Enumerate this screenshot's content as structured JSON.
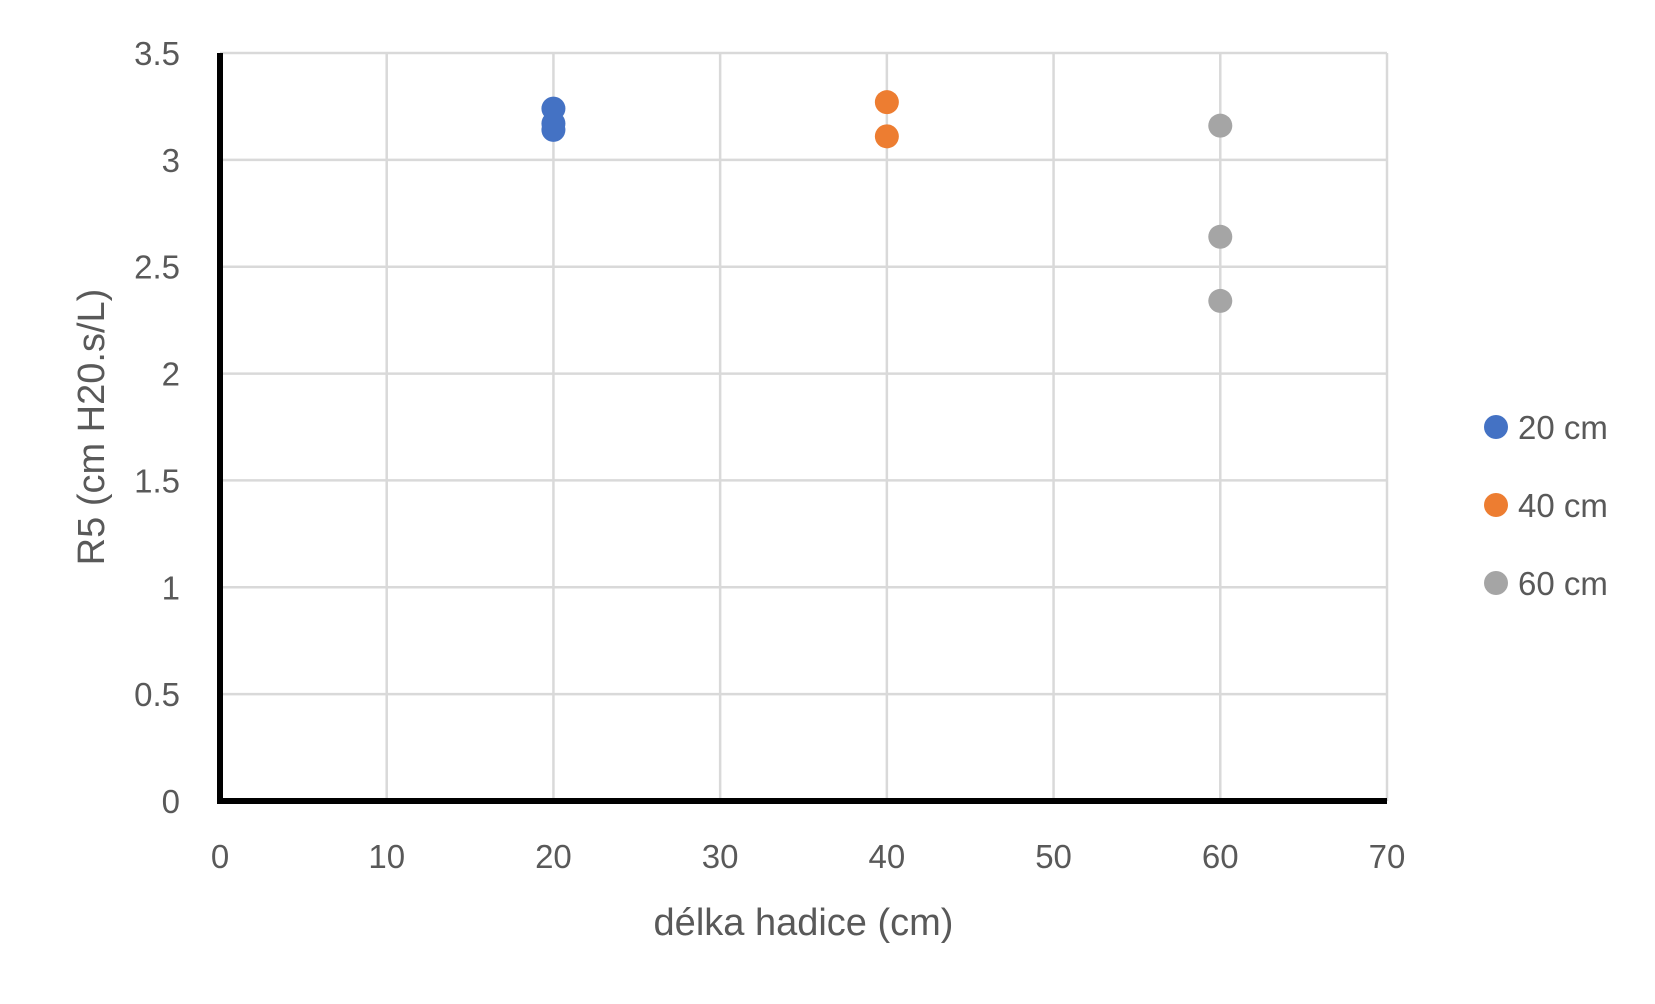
{
  "chart_data": {
    "type": "scatter",
    "title": "",
    "xlabel": "délka hadice (cm)",
    "ylabel": "R5 (cm H20.s/L)",
    "xlim": [
      0,
      70
    ],
    "ylim": [
      0,
      3.5
    ],
    "x_ticks": [
      "0",
      "10",
      "20",
      "30",
      "40",
      "50",
      "60",
      "70"
    ],
    "y_ticks": [
      "0",
      "0.5",
      "1",
      "1.5",
      "2",
      "2.5",
      "3",
      "3.5"
    ],
    "grid": true,
    "legend_position": "right",
    "series": [
      {
        "name": "20 cm",
        "color": "#4472C4",
        "points": [
          {
            "x": 20,
            "y": 3.24
          },
          {
            "x": 20,
            "y": 3.17
          },
          {
            "x": 20,
            "y": 3.14
          }
        ]
      },
      {
        "name": "40 cm",
        "color": "#ED7D31",
        "points": [
          {
            "x": 40,
            "y": 3.27
          },
          {
            "x": 40,
            "y": 3.11
          }
        ]
      },
      {
        "name": "60 cm",
        "color": "#A5A5A5",
        "points": [
          {
            "x": 60,
            "y": 3.16
          },
          {
            "x": 60,
            "y": 2.64
          },
          {
            "x": 60,
            "y": 2.34
          }
        ]
      }
    ]
  }
}
